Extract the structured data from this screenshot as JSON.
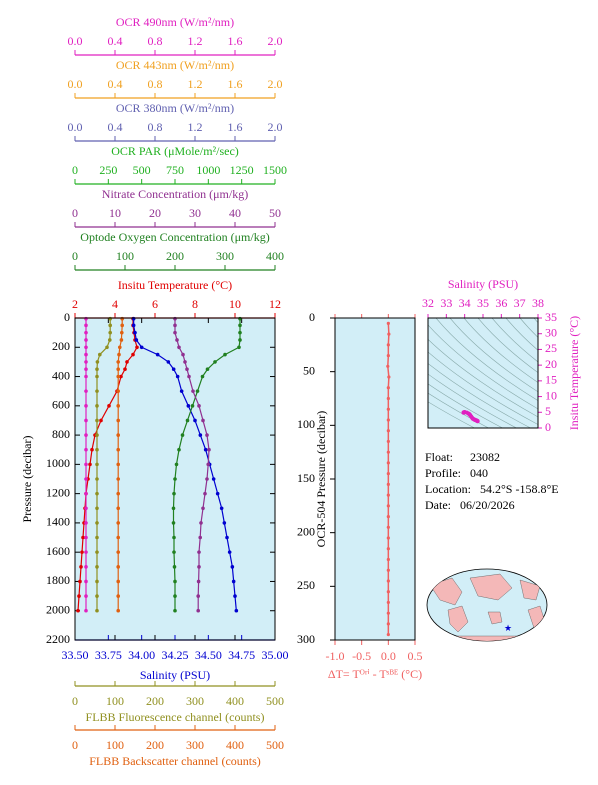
{
  "chart_data": [
    {
      "type": "profile",
      "ylabel": "Pressure (decibar)",
      "ylim": [
        0,
        2200
      ],
      "invert_y": true,
      "yticks": [
        0,
        200,
        400,
        600,
        800,
        1000,
        1200,
        1400,
        1600,
        1800,
        2000,
        2200
      ],
      "background": "#d2eef7",
      "pressure": [
        5,
        50,
        100,
        150,
        200,
        250,
        300,
        350,
        400,
        500,
        600,
        700,
        800,
        900,
        1000,
        1100,
        1200,
        1300,
        1400,
        1500,
        1600,
        1700,
        1800,
        1900,
        2000
      ],
      "axes": [
        {
          "position": "top",
          "title": "OCR 490nm (W/m²/nm)",
          "color": "#e020c0",
          "xlim": [
            0,
            2
          ],
          "xticks": [
            {
              "value": 0,
              "label": "0.0"
            },
            0.4,
            0.8,
            1.2,
            1.6,
            {
              "value": 2,
              "label": "2.0"
            }
          ]
        },
        {
          "position": "top",
          "title": "OCR 443nm (W/m²/nm)",
          "color": "#f0a020",
          "xlim": [
            0,
            2
          ],
          "xticks": [
            {
              "value": 0,
              "label": "0.0"
            },
            0.4,
            0.8,
            1.2,
            1.6,
            {
              "value": 2,
              "label": "2.0"
            }
          ]
        },
        {
          "position": "top",
          "title": "OCR 380nm (W/m²/nm)",
          "color": "#6060b0",
          "xlim": [
            0,
            2
          ],
          "xticks": [
            {
              "value": 0,
              "label": "0.0"
            },
            0.4,
            0.8,
            1.2,
            1.6,
            {
              "value": 2,
              "label": "2.0"
            }
          ]
        },
        {
          "position": "top",
          "title": "OCR PAR (μMole/m²/sec)",
          "color": "#20b020",
          "xlim": [
            0,
            1500
          ],
          "xticks": [
            0,
            250,
            500,
            750,
            1000,
            1250,
            1500
          ]
        },
        {
          "position": "top",
          "title": "Nitrate Concentration (μm/kg)",
          "color": "#903090",
          "xlim": [
            0,
            50
          ],
          "xticks": [
            0,
            10,
            20,
            30,
            40,
            50
          ]
        },
        {
          "position": "top",
          "title": "Optode Oxygen Concentration (μm/kg)",
          "color": "#208020",
          "xlim": [
            0,
            400
          ],
          "xticks": [
            0,
            100,
            200,
            300,
            400
          ]
        },
        {
          "position": "top",
          "title": "Insitu Temperature (°C)",
          "color": "#e00000",
          "xlim": [
            2,
            12
          ],
          "xticks": [
            2,
            4,
            6,
            8,
            10,
            12
          ]
        },
        {
          "position": "bottom",
          "title": "Salinity (PSU)",
          "color": "#0000d0",
          "xlim": [
            33.5,
            35
          ],
          "xticks": [
            {
              "value": 33.5,
              "label": "33.50"
            },
            33.75,
            {
              "value": 34,
              "label": "34.00"
            },
            34.25,
            {
              "value": 34.5,
              "label": "34.50"
            },
            34.75,
            {
              "value": 35,
              "label": "35.00"
            }
          ]
        },
        {
          "position": "bottom",
          "title": "FLBB Fluorescence channel (counts)",
          "color": "#909020",
          "xlim": [
            0,
            500
          ],
          "xticks": [
            0,
            100,
            200,
            300,
            400,
            500
          ]
        },
        {
          "position": "bottom",
          "title": "FLBB Backscatter channel (counts)",
          "color": "#e06010",
          "xlim": [
            0,
            500
          ],
          "xticks": [
            0,
            100,
            200,
            300,
            400,
            500
          ]
        }
      ],
      "series": [
        {
          "axis": 6,
          "color": "#e00000",
          "values": [
            4.9,
            4.9,
            4.95,
            5.0,
            5.1,
            4.9,
            4.6,
            4.5,
            4.3,
            4.1,
            3.7,
            3.3,
            3.0,
            2.85,
            2.75,
            2.65,
            2.55,
            2.5,
            2.45,
            2.4,
            2.35,
            2.3,
            2.25,
            2.2,
            2.15
          ]
        },
        {
          "axis": 7,
          "color": "#0000d0",
          "values": [
            33.94,
            33.94,
            33.95,
            33.96,
            34.0,
            34.12,
            34.2,
            34.24,
            34.27,
            34.3,
            34.35,
            34.4,
            34.44,
            34.48,
            34.51,
            34.54,
            34.57,
            34.6,
            34.62,
            34.64,
            34.66,
            34.68,
            34.69,
            34.7,
            34.71
          ]
        },
        {
          "axis": 5,
          "color": "#208020",
          "values": [
            330,
            330,
            330,
            330,
            328,
            300,
            280,
            265,
            255,
            245,
            235,
            225,
            215,
            208,
            203,
            200,
            198,
            197,
            197,
            198,
            198,
            199,
            200,
            200,
            200
          ]
        },
        {
          "axis": 4,
          "color": "#903090",
          "values": [
            25,
            25,
            25,
            25.5,
            26,
            27,
            27.5,
            28,
            28.5,
            29.5,
            31,
            32,
            33,
            33.5,
            33.3,
            33,
            32.5,
            32,
            31.5,
            31.3,
            31,
            31,
            30.9,
            30.8,
            30.8
          ]
        },
        {
          "axis": 0,
          "color": "#e020c0",
          "values": [
            0.11,
            0.11,
            0.11,
            0.11,
            0.11,
            0.11,
            0.11,
            0.11,
            0.11,
            0.11,
            0.11,
            0.11,
            0.11,
            0.11,
            0.11,
            0.11,
            0.11,
            0.11,
            0.11,
            0.11,
            0.11,
            0.11,
            0.11,
            0.11,
            0.11
          ]
        },
        {
          "axis": 8,
          "color": "#909020",
          "values": [
            88,
            88,
            88,
            87,
            80,
            62,
            56,
            55,
            55,
            55,
            55,
            55,
            55,
            55,
            55,
            55,
            55,
            55,
            55,
            55,
            55,
            55,
            55,
            55,
            55
          ]
        },
        {
          "axis": 9,
          "color": "#e06010",
          "values": [
            118,
            118,
            117,
            116,
            112,
            110,
            108,
            108,
            108,
            108,
            108,
            108,
            108,
            108,
            108,
            108,
            108,
            108,
            108,
            108,
            108,
            108,
            108,
            108,
            108
          ]
        }
      ]
    },
    {
      "type": "delta",
      "xlabel": "ΔT= Tᴼʳⁱ - Tˢᴮᴱ (°C)",
      "ylabel": "OCR-504 Pressure (decibar)",
      "color": "#f06060",
      "background": "#d2eef7",
      "xlim": [
        -1,
        0.5
      ],
      "xticks": [
        {
          "value": -1,
          "label": "-1.0"
        },
        -0.5,
        {
          "value": 0,
          "label": "0.0"
        },
        0.5
      ],
      "ylim": [
        0,
        300
      ],
      "invert_y": true,
      "yticks": [
        0,
        50,
        100,
        150,
        200,
        250,
        300
      ],
      "pressure": [
        5,
        15,
        25,
        35,
        45,
        55,
        65,
        75,
        85,
        95,
        105,
        115,
        125,
        135,
        145,
        155,
        165,
        175,
        185,
        195,
        205,
        215,
        225,
        235,
        245,
        255,
        265,
        275,
        285,
        295
      ],
      "values": [
        0.0,
        0.01,
        0.0,
        0.0,
        -0.01,
        0.01,
        0.0,
        0.0,
        0.0,
        0.0,
        0.0,
        0.0,
        0.0,
        0.0,
        0.0,
        0.0,
        0.0,
        0.0,
        0.0,
        0.0,
        0.0,
        0.0,
        0.0,
        0.0,
        0.0,
        0.0,
        0.0,
        0.0,
        0.0,
        0.0
      ]
    },
    {
      "type": "ts",
      "xlabel": "Salinity (PSU)",
      "ylabel": "Insitu Temperature (°C)",
      "color": "#e020c0",
      "background": "#d2eef7",
      "xlim": [
        32,
        38
      ],
      "xticks": [
        32,
        33,
        34,
        35,
        36,
        37,
        38
      ],
      "ylim": [
        0,
        35
      ],
      "yticks": [
        0,
        5,
        10,
        15,
        20,
        25,
        30,
        35
      ]
    }
  ],
  "float_info": [
    {
      "label": "Float:",
      "value": "23082"
    },
    {
      "label": "Profile:",
      "value": "040"
    },
    {
      "label": "Location:",
      "value": "54.2°S  -158.8°E"
    },
    {
      "label": "Date:",
      "value": "06/20/2026"
    }
  ]
}
